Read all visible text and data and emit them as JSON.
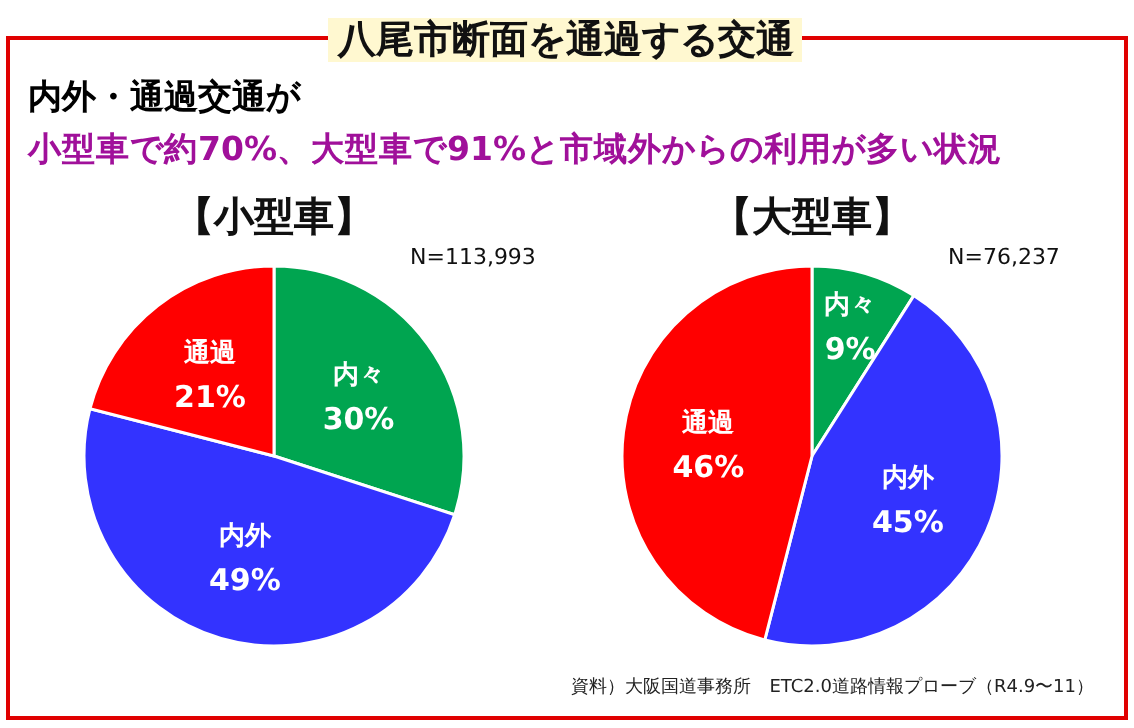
{
  "chart_data": [
    {
      "type": "other",
      "title": "八尾市断面を通過する交通",
      "subtitle": "内外・通過交通が",
      "annotations": [
        "小型車で約70%、大型車で91%と市域外からの利用が多い状況",
        "資料）大阪国道事務所　ETC2.0道路情報プローブ（R4.9〜11）"
      ]
    },
    {
      "type": "pie",
      "title": "【小型車】",
      "annotations": [
        "N=113,993"
      ],
      "categories": [
        "内々",
        "内外",
        "通過"
      ],
      "values": [
        30,
        49,
        21
      ],
      "colors": [
        "#00a550",
        "#3333ff",
        "#ff0000"
      ],
      "value_labels": [
        "30%",
        "49%",
        "21%"
      ]
    },
    {
      "type": "pie",
      "title": "【大型車】",
      "annotations": [
        "N=76,237"
      ],
      "categories": [
        "内々",
        "内外",
        "通過"
      ],
      "values": [
        9,
        45,
        46
      ],
      "colors": [
        "#00a550",
        "#3333ff",
        "#ff0000"
      ],
      "value_labels": [
        "9%",
        "45%",
        "46%"
      ]
    }
  ]
}
